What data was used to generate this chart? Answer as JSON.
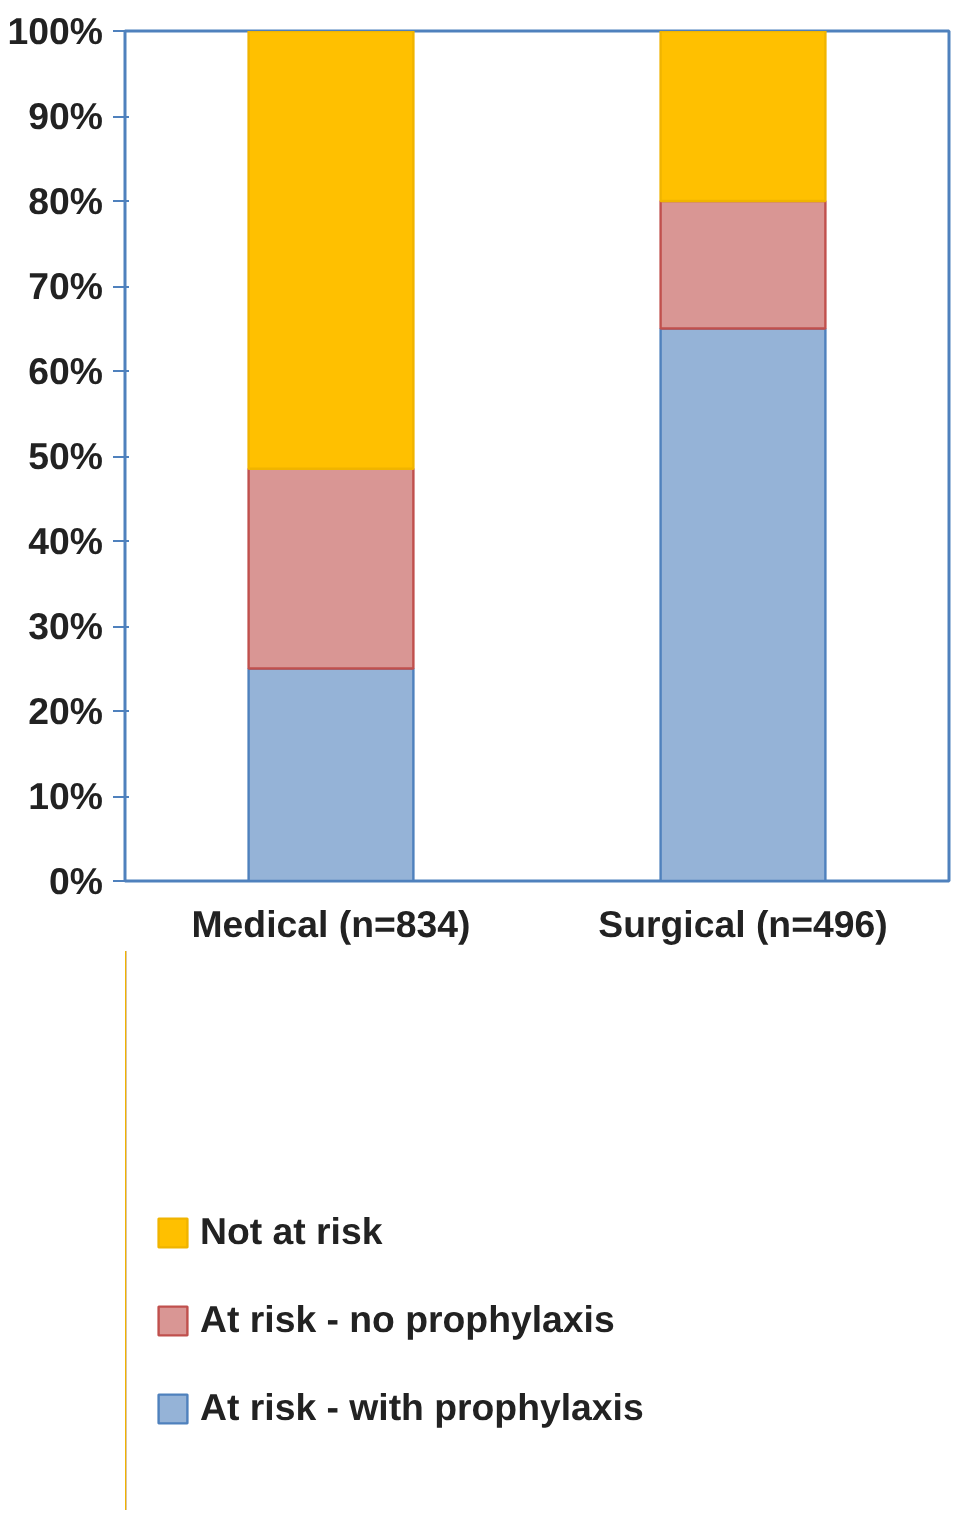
{
  "chart_data": {
    "type": "bar",
    "stacked": true,
    "categories": [
      "Medical (n=834)",
      "Surgical (n=496)"
    ],
    "series": [
      {
        "name": "At risk - with prophylaxis",
        "color": "#95b3d7",
        "values": [
          25,
          65
        ]
      },
      {
        "name": "At risk - no prophylaxis",
        "color": "#d99694",
        "values": [
          23.5,
          15
        ]
      },
      {
        "name": "Not at risk",
        "color": "#ffc000",
        "values": [
          51.5,
          20
        ]
      }
    ],
    "ylim": [
      0,
      100
    ],
    "yticks": [
      {
        "value": 0,
        "label": "0%"
      },
      {
        "value": 10,
        "label": "10%"
      },
      {
        "value": 20,
        "label": "20%"
      },
      {
        "value": 30,
        "label": "30%"
      },
      {
        "value": 40,
        "label": "40%"
      },
      {
        "value": 50,
        "label": "50%"
      },
      {
        "value": 60,
        "label": "60%"
      },
      {
        "value": 70,
        "label": "70%"
      },
      {
        "value": 80,
        "label": "80%"
      },
      {
        "value": 90,
        "label": "90%"
      },
      {
        "value": 100,
        "label": "100%"
      }
    ],
    "grid": false,
    "legend": "bottom"
  }
}
